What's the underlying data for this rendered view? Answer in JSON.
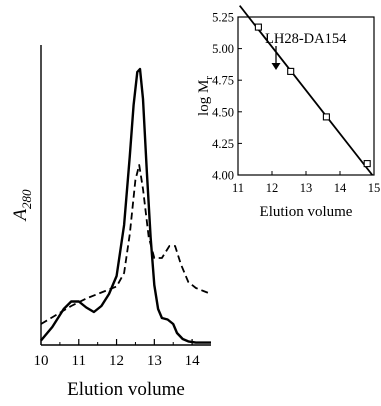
{
  "chart_data": [
    {
      "type": "line",
      "title": "",
      "xlabel": "Elution volume",
      "ylabel": "A280",
      "ylabel_main": "A",
      "ylabel_sub": "280",
      "xlim": [
        10,
        14.5
      ],
      "ylim": [
        0,
        1
      ],
      "x_ticks": [
        "10",
        "11",
        "12",
        "13",
        "14"
      ],
      "grid": false,
      "series": [
        {
          "style": "solid",
          "x": [
            10.0,
            10.3,
            10.6,
            10.8,
            11.0,
            11.2,
            11.4,
            11.6,
            11.8,
            12.0,
            12.2,
            12.35,
            12.45,
            12.55,
            12.62,
            12.7,
            12.8,
            12.9,
            13.0,
            13.1,
            13.2,
            13.35,
            13.5,
            13.6,
            13.75,
            13.9,
            14.1,
            14.5
          ],
          "y": [
            0.015,
            0.06,
            0.12,
            0.145,
            0.145,
            0.125,
            0.11,
            0.13,
            0.17,
            0.23,
            0.4,
            0.63,
            0.8,
            0.91,
            0.92,
            0.82,
            0.58,
            0.36,
            0.2,
            0.12,
            0.09,
            0.085,
            0.07,
            0.04,
            0.02,
            0.012,
            0.008,
            0.008
          ]
        },
        {
          "style": "dashed",
          "x": [
            10.0,
            10.4,
            10.8,
            11.2,
            11.6,
            12.0,
            12.2,
            12.35,
            12.5,
            12.6,
            12.7,
            12.85,
            13.0,
            13.2,
            13.4,
            13.55,
            13.7,
            13.9,
            14.1,
            14.3,
            14.5
          ],
          "y": [
            0.07,
            0.1,
            0.13,
            0.155,
            0.175,
            0.195,
            0.24,
            0.37,
            0.55,
            0.6,
            0.52,
            0.36,
            0.29,
            0.29,
            0.33,
            0.33,
            0.27,
            0.21,
            0.19,
            0.18,
            0.17
          ]
        }
      ]
    },
    {
      "type": "scatter",
      "title": "",
      "xlabel": "Elution volume",
      "ylabel": "log Mr",
      "ylabel_main": "log M",
      "ylabel_sub": "r",
      "xlim": [
        11,
        15
      ],
      "ylim": [
        4.0,
        5.25
      ],
      "x_ticks": [
        "11",
        "12",
        "13",
        "14",
        "15"
      ],
      "y_ticks": [
        "4.00",
        "4.25",
        "4.50",
        "4.75",
        "5.00",
        "5.25"
      ],
      "grid": false,
      "points": {
        "x": [
          11.6,
          12.55,
          13.6,
          14.8
        ],
        "y": [
          5.17,
          4.82,
          4.46,
          4.09
        ]
      },
      "fit_line": {
        "x": [
          11.05,
          14.95
        ],
        "y": [
          5.34,
          4.0
        ]
      },
      "annotation": {
        "text": "LH28-DA154",
        "x": 12.6,
        "y": 4.82
      }
    }
  ]
}
